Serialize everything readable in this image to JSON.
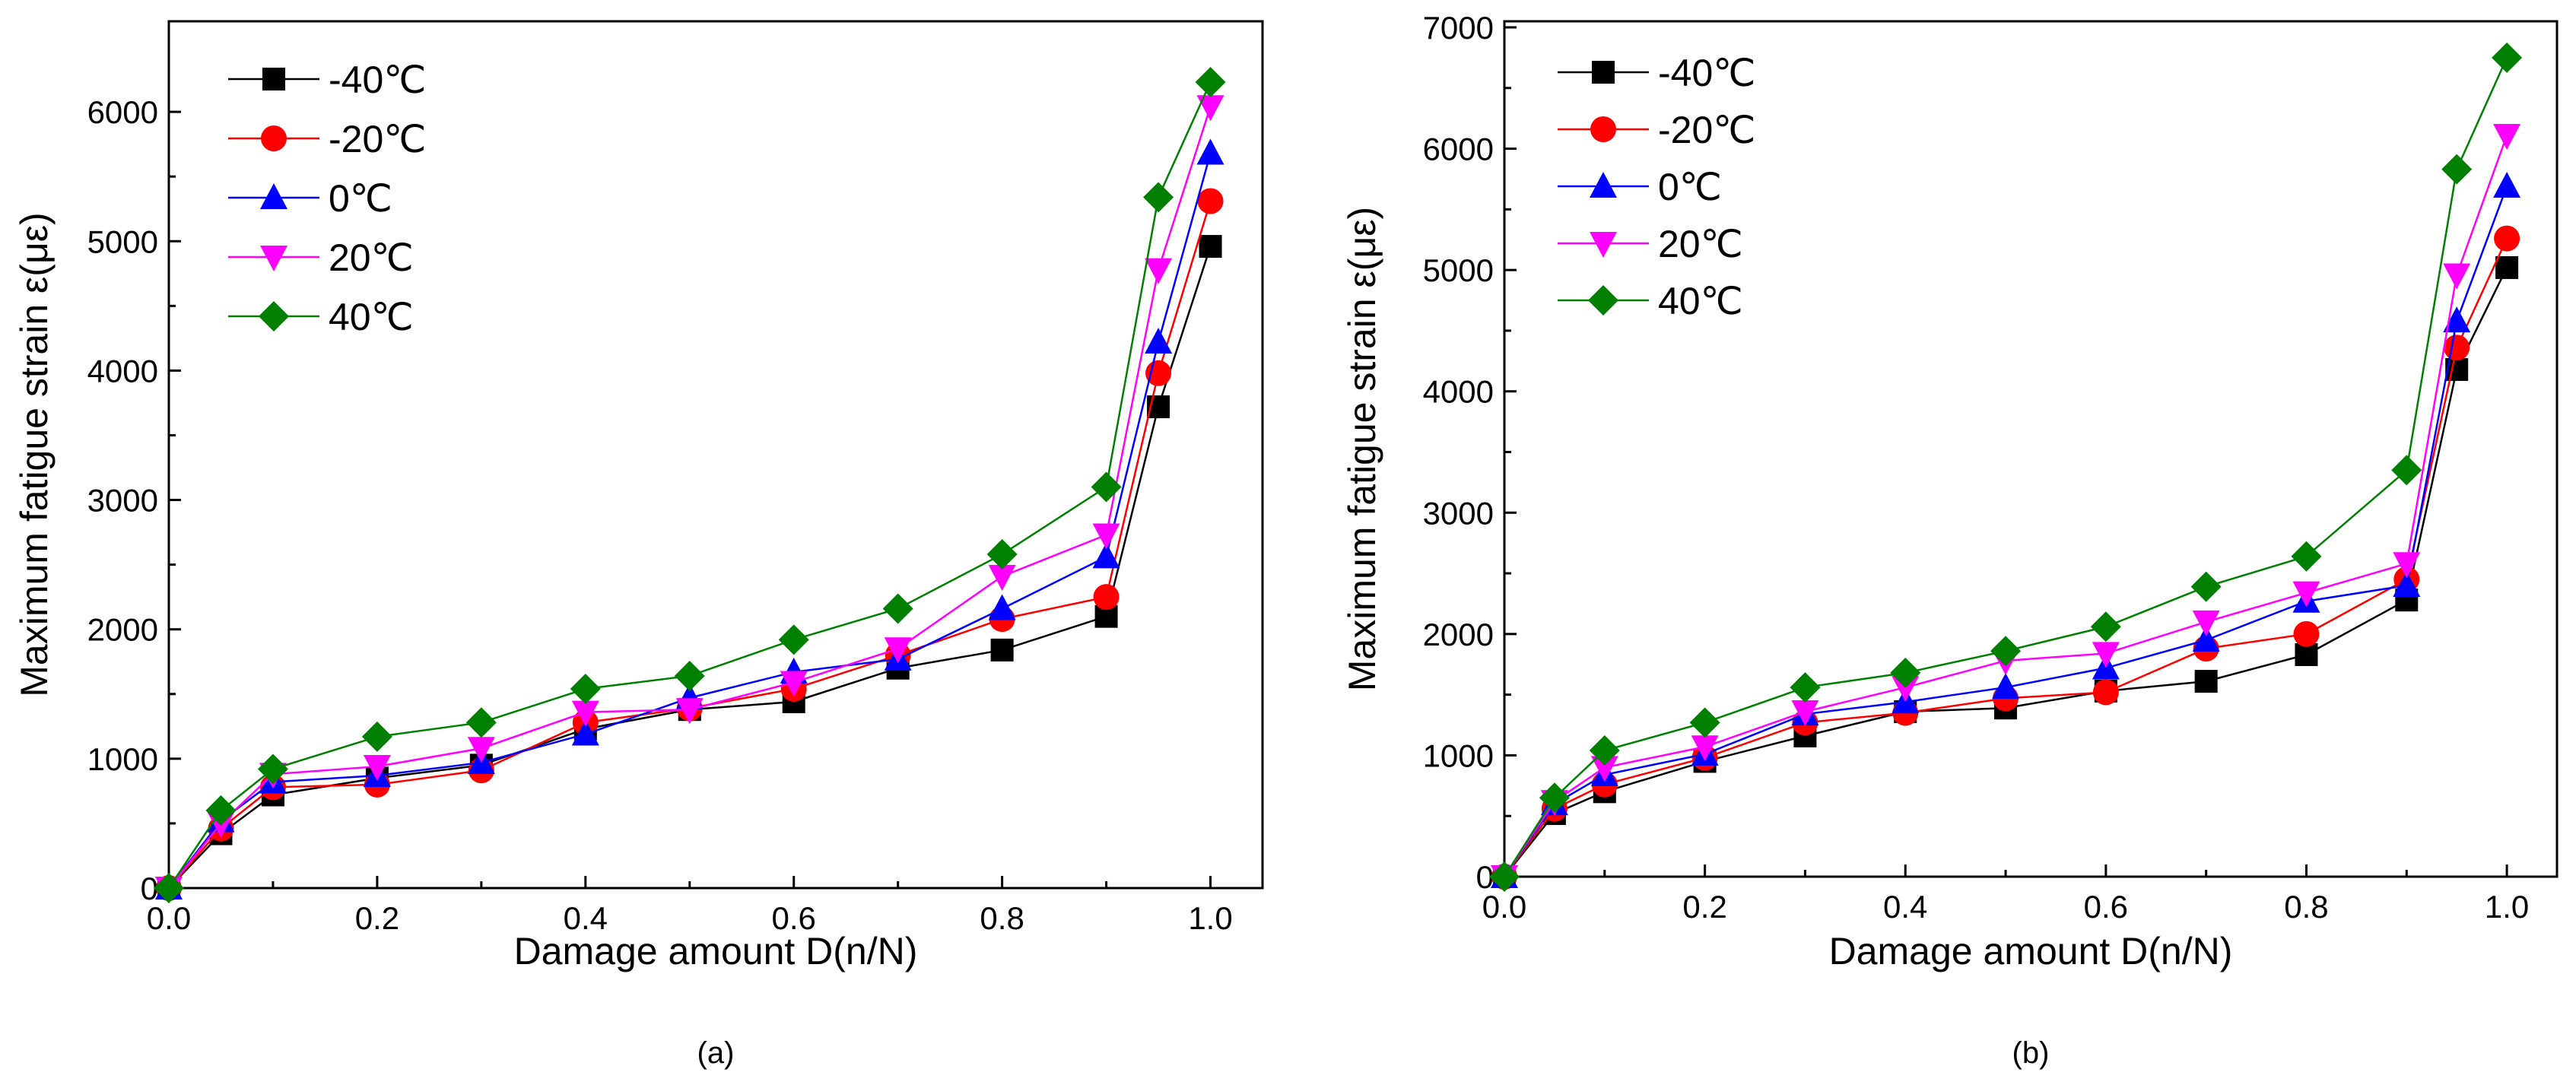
{
  "chart_data": [
    {
      "type": "line",
      "panel_label": "(a)",
      "xlabel": "Damage amount D(n/N)",
      "ylabel": "Maximum fatigue strain ε(με)",
      "xlim": [
        0.0,
        1.05
      ],
      "ylim": [
        0,
        6700
      ],
      "xticks": [
        0.0,
        0.2,
        0.4,
        0.6,
        0.8,
        1.0
      ],
      "xtick_labels": [
        "0.0",
        "0.2",
        "0.4",
        "0.6",
        "0.8",
        "1.0"
      ],
      "yticks": [
        0,
        1000,
        2000,
        3000,
        4000,
        5000,
        6000
      ],
      "ytick_labels": [
        "0",
        "1000",
        "2000",
        "3000",
        "4000",
        "5000",
        "6000"
      ],
      "grid": false,
      "legend_position": "top-left",
      "x": [
        0,
        0.05,
        0.1,
        0.2,
        0.3,
        0.4,
        0.5,
        0.6,
        0.7,
        0.8,
        0.9,
        0.95,
        1.0
      ],
      "series": [
        {
          "name": "-40℃",
          "color": "#000000",
          "marker": "square",
          "values": [
            0,
            420,
            720,
            850,
            950,
            1230,
            1380,
            1440,
            1700,
            1840,
            2100,
            3720,
            4960
          ]
        },
        {
          "name": "-20℃",
          "color": "#ff0000",
          "marker": "circle",
          "values": [
            0,
            460,
            780,
            800,
            910,
            1280,
            1390,
            1540,
            1800,
            2080,
            2250,
            3980,
            5310
          ]
        },
        {
          "name": "0℃",
          "color": "#0000ff",
          "marker": "triangle-up",
          "values": [
            0,
            520,
            820,
            870,
            970,
            1190,
            1470,
            1670,
            1770,
            2160,
            2560,
            4220,
            5680
          ]
        },
        {
          "name": "20℃",
          "color": "#ff00ff",
          "marker": "triangle-down",
          "values": [
            0,
            500,
            880,
            940,
            1080,
            1360,
            1380,
            1590,
            1850,
            2410,
            2730,
            4780,
            6040
          ]
        },
        {
          "name": "40℃",
          "color": "#008000",
          "marker": "diamond",
          "values": [
            0,
            600,
            920,
            1170,
            1280,
            1540,
            1640,
            1920,
            2160,
            2580,
            3100,
            5340,
            6230
          ]
        }
      ]
    },
    {
      "type": "line",
      "panel_label": "(b)",
      "xlabel": "Damage amount D(n/N)",
      "ylabel": "Maximum fatigue strain ε(με)",
      "xlim": [
        0.0,
        1.05
      ],
      "ylim": [
        0,
        7050
      ],
      "xticks": [
        0.0,
        0.2,
        0.4,
        0.6,
        0.8,
        1.0
      ],
      "xtick_labels": [
        "0.0",
        "0.2",
        "0.4",
        "0.6",
        "0.8",
        "1.0"
      ],
      "yticks": [
        0,
        1000,
        2000,
        3000,
        4000,
        5000,
        6000,
        7000
      ],
      "ytick_labels": [
        "0",
        "1000",
        "2000",
        "3000",
        "4000",
        "5000",
        "6000",
        "7000"
      ],
      "grid": false,
      "legend_position": "top-left",
      "x": [
        0,
        0.05,
        0.1,
        0.2,
        0.3,
        0.4,
        0.5,
        0.6,
        0.7,
        0.8,
        0.9,
        0.95,
        1.0
      ],
      "series": [
        {
          "name": "-40℃",
          "color": "#000000",
          "marker": "square",
          "values": [
            0,
            520,
            700,
            950,
            1160,
            1360,
            1390,
            1530,
            1610,
            1830,
            2280,
            4180,
            5020
          ]
        },
        {
          "name": "-20℃",
          "color": "#ff0000",
          "marker": "circle",
          "values": [
            0,
            560,
            760,
            980,
            1270,
            1350,
            1470,
            1520,
            1880,
            2000,
            2450,
            4360,
            5260
          ]
        },
        {
          "name": "0℃",
          "color": "#0000ff",
          "marker": "triangle-up",
          "values": [
            0,
            600,
            840,
            1010,
            1340,
            1440,
            1560,
            1720,
            1950,
            2270,
            2400,
            4580,
            5690
          ]
        },
        {
          "name": "20℃",
          "color": "#ff00ff",
          "marker": "triangle-down",
          "values": [
            0,
            620,
            900,
            1070,
            1360,
            1560,
            1780,
            1840,
            2100,
            2340,
            2580,
            4960,
            6110
          ]
        },
        {
          "name": "40℃",
          "color": "#008000",
          "marker": "diamond",
          "values": [
            0,
            650,
            1040,
            1270,
            1560,
            1680,
            1860,
            2060,
            2390,
            2640,
            3350,
            5830,
            6750
          ]
        }
      ]
    }
  ]
}
